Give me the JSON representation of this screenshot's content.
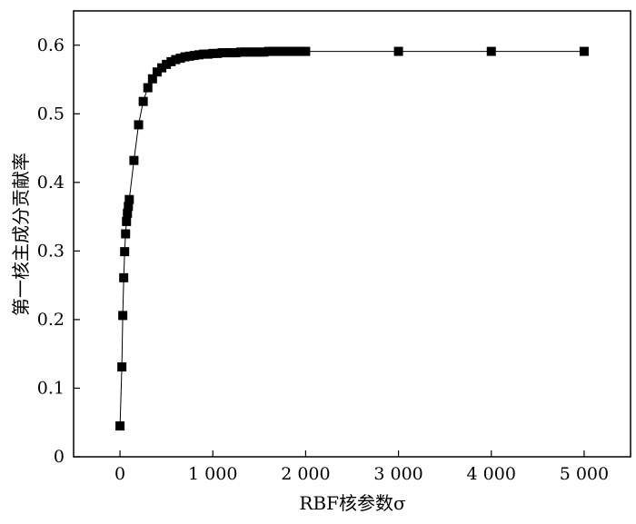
{
  "chart_data": {
    "type": "line",
    "title": "",
    "xlabel": "RBF核参数σ",
    "ylabel": "第一核主成分贡献率",
    "xlim": [
      -500,
      5500
    ],
    "ylim": [
      0,
      0.65
    ],
    "xticks": [
      0,
      1000,
      2000,
      3000,
      4000,
      5000
    ],
    "xtick_labels": [
      "0",
      "1 000",
      "2 000",
      "3 000",
      "4 000",
      "5 000"
    ],
    "yticks": [
      0,
      0.1,
      0.2,
      0.3,
      0.4,
      0.5,
      0.6
    ],
    "ytick_labels": [
      "0",
      "0.1",
      "0.2",
      "0.3",
      "0.4",
      "0.5",
      "0.6"
    ],
    "grid": false,
    "marker": "square",
    "line_color": "#000000",
    "marker_color": "#000000",
    "series": [
      {
        "x": [
          0,
          20,
          30,
          40,
          50,
          60,
          70,
          80,
          90,
          100,
          150,
          200,
          250,
          300,
          350,
          400,
          450,
          500,
          550,
          600,
          650,
          700,
          750,
          800,
          850,
          900,
          950,
          1000,
          1050,
          1100,
          1150,
          1200,
          1250,
          1300,
          1350,
          1400,
          1450,
          1500,
          1550,
          1600,
          1650,
          1700,
          1750,
          1800,
          1850,
          1900,
          1950,
          2000,
          3000,
          4000,
          5000
        ],
        "y": [
          0.045,
          0.131,
          0.206,
          0.261,
          0.299,
          0.325,
          0.343,
          0.355,
          0.365,
          0.375,
          0.432,
          0.484,
          0.518,
          0.538,
          0.551,
          0.561,
          0.567,
          0.572,
          0.576,
          0.579,
          0.581,
          0.583,
          0.584,
          0.585,
          0.586,
          0.587,
          0.587,
          0.588,
          0.588,
          0.589,
          0.589,
          0.589,
          0.589,
          0.59,
          0.59,
          0.59,
          0.59,
          0.59,
          0.59,
          0.591,
          0.591,
          0.591,
          0.591,
          0.591,
          0.591,
          0.591,
          0.591,
          0.591,
          0.591,
          0.591,
          0.591
        ]
      }
    ]
  }
}
